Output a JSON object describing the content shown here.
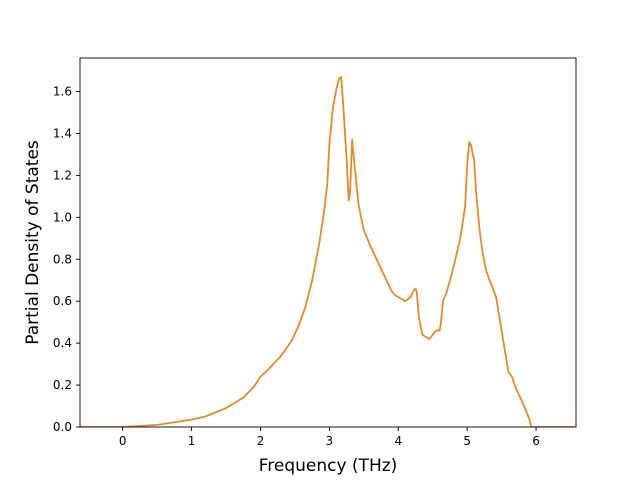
{
  "chart_data": {
    "type": "line",
    "title": "",
    "xlabel": "Frequency (THz)",
    "ylabel": "Partial Density of States",
    "xlim": [
      -0.62,
      6.58
    ],
    "ylim": [
      0.0,
      1.76
    ],
    "xticks": [
      0,
      1,
      2,
      3,
      4,
      5,
      6
    ],
    "yticks": [
      0.0,
      0.2,
      0.4,
      0.6,
      0.8,
      1.0,
      1.2,
      1.4,
      1.6
    ],
    "xtick_labels": [
      "0",
      "1",
      "2",
      "3",
      "4",
      "5",
      "6"
    ],
    "ytick_labels": [
      "0.0",
      "0.2",
      "0.4",
      "0.6",
      "0.8",
      "1.0",
      "1.2",
      "1.4",
      "1.6"
    ],
    "grid": false,
    "legend": "none",
    "series": [
      {
        "color": "#e38a2c",
        "x": [
          -0.62,
          0.0,
          0.5,
          1.0,
          1.2,
          1.5,
          1.75,
          1.9,
          2.0,
          2.1,
          2.3,
          2.45,
          2.55,
          2.65,
          2.75,
          2.85,
          2.92,
          2.97,
          3.0,
          3.05,
          3.1,
          3.14,
          3.17,
          3.2,
          3.25,
          3.28,
          3.3,
          3.33,
          3.35,
          3.38,
          3.42,
          3.46,
          3.5,
          3.6,
          3.7,
          3.8,
          3.9,
          3.95,
          4.05,
          4.1,
          4.18,
          4.22,
          4.25,
          4.27,
          4.3,
          4.35,
          4.4,
          4.45,
          4.5,
          4.55,
          4.6,
          4.62,
          4.65,
          4.7,
          4.75,
          4.8,
          4.9,
          4.97,
          5.0,
          5.03,
          5.06,
          5.08,
          5.1,
          5.13,
          5.18,
          5.22,
          5.28,
          5.35,
          5.42,
          5.5,
          5.55,
          5.6,
          5.65,
          5.7,
          5.8,
          5.85,
          5.9,
          5.93,
          5.96,
          6.0,
          6.56
        ],
        "y": [
          0.0,
          0.0,
          0.01,
          0.035,
          0.05,
          0.09,
          0.14,
          0.19,
          0.24,
          0.27,
          0.34,
          0.41,
          0.48,
          0.57,
          0.7,
          0.87,
          1.02,
          1.16,
          1.35,
          1.52,
          1.61,
          1.66,
          1.67,
          1.54,
          1.28,
          1.08,
          1.12,
          1.37,
          1.3,
          1.2,
          1.07,
          1.0,
          0.94,
          0.86,
          0.79,
          0.72,
          0.65,
          0.63,
          0.61,
          0.6,
          0.62,
          0.65,
          0.66,
          0.64,
          0.52,
          0.44,
          0.43,
          0.42,
          0.44,
          0.46,
          0.46,
          0.5,
          0.6,
          0.64,
          0.7,
          0.76,
          0.9,
          1.05,
          1.25,
          1.36,
          1.34,
          1.3,
          1.28,
          1.12,
          0.94,
          0.84,
          0.74,
          0.68,
          0.62,
          0.46,
          0.36,
          0.26,
          0.24,
          0.19,
          0.12,
          0.08,
          0.04,
          0.0,
          0.0,
          0.0,
          0.0
        ]
      }
    ]
  }
}
